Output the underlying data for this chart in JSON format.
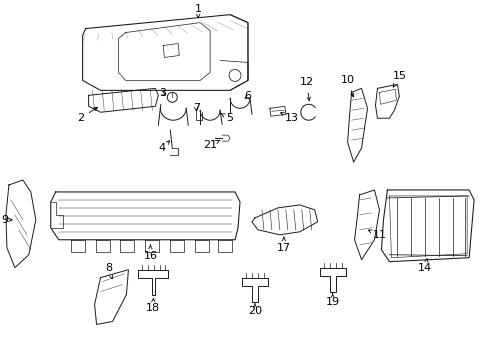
{
  "background_color": "#ffffff",
  "line_color": "#1a1a1a",
  "label_color": "#000000",
  "fig_width": 4.89,
  "fig_height": 3.6,
  "dpi": 100
}
